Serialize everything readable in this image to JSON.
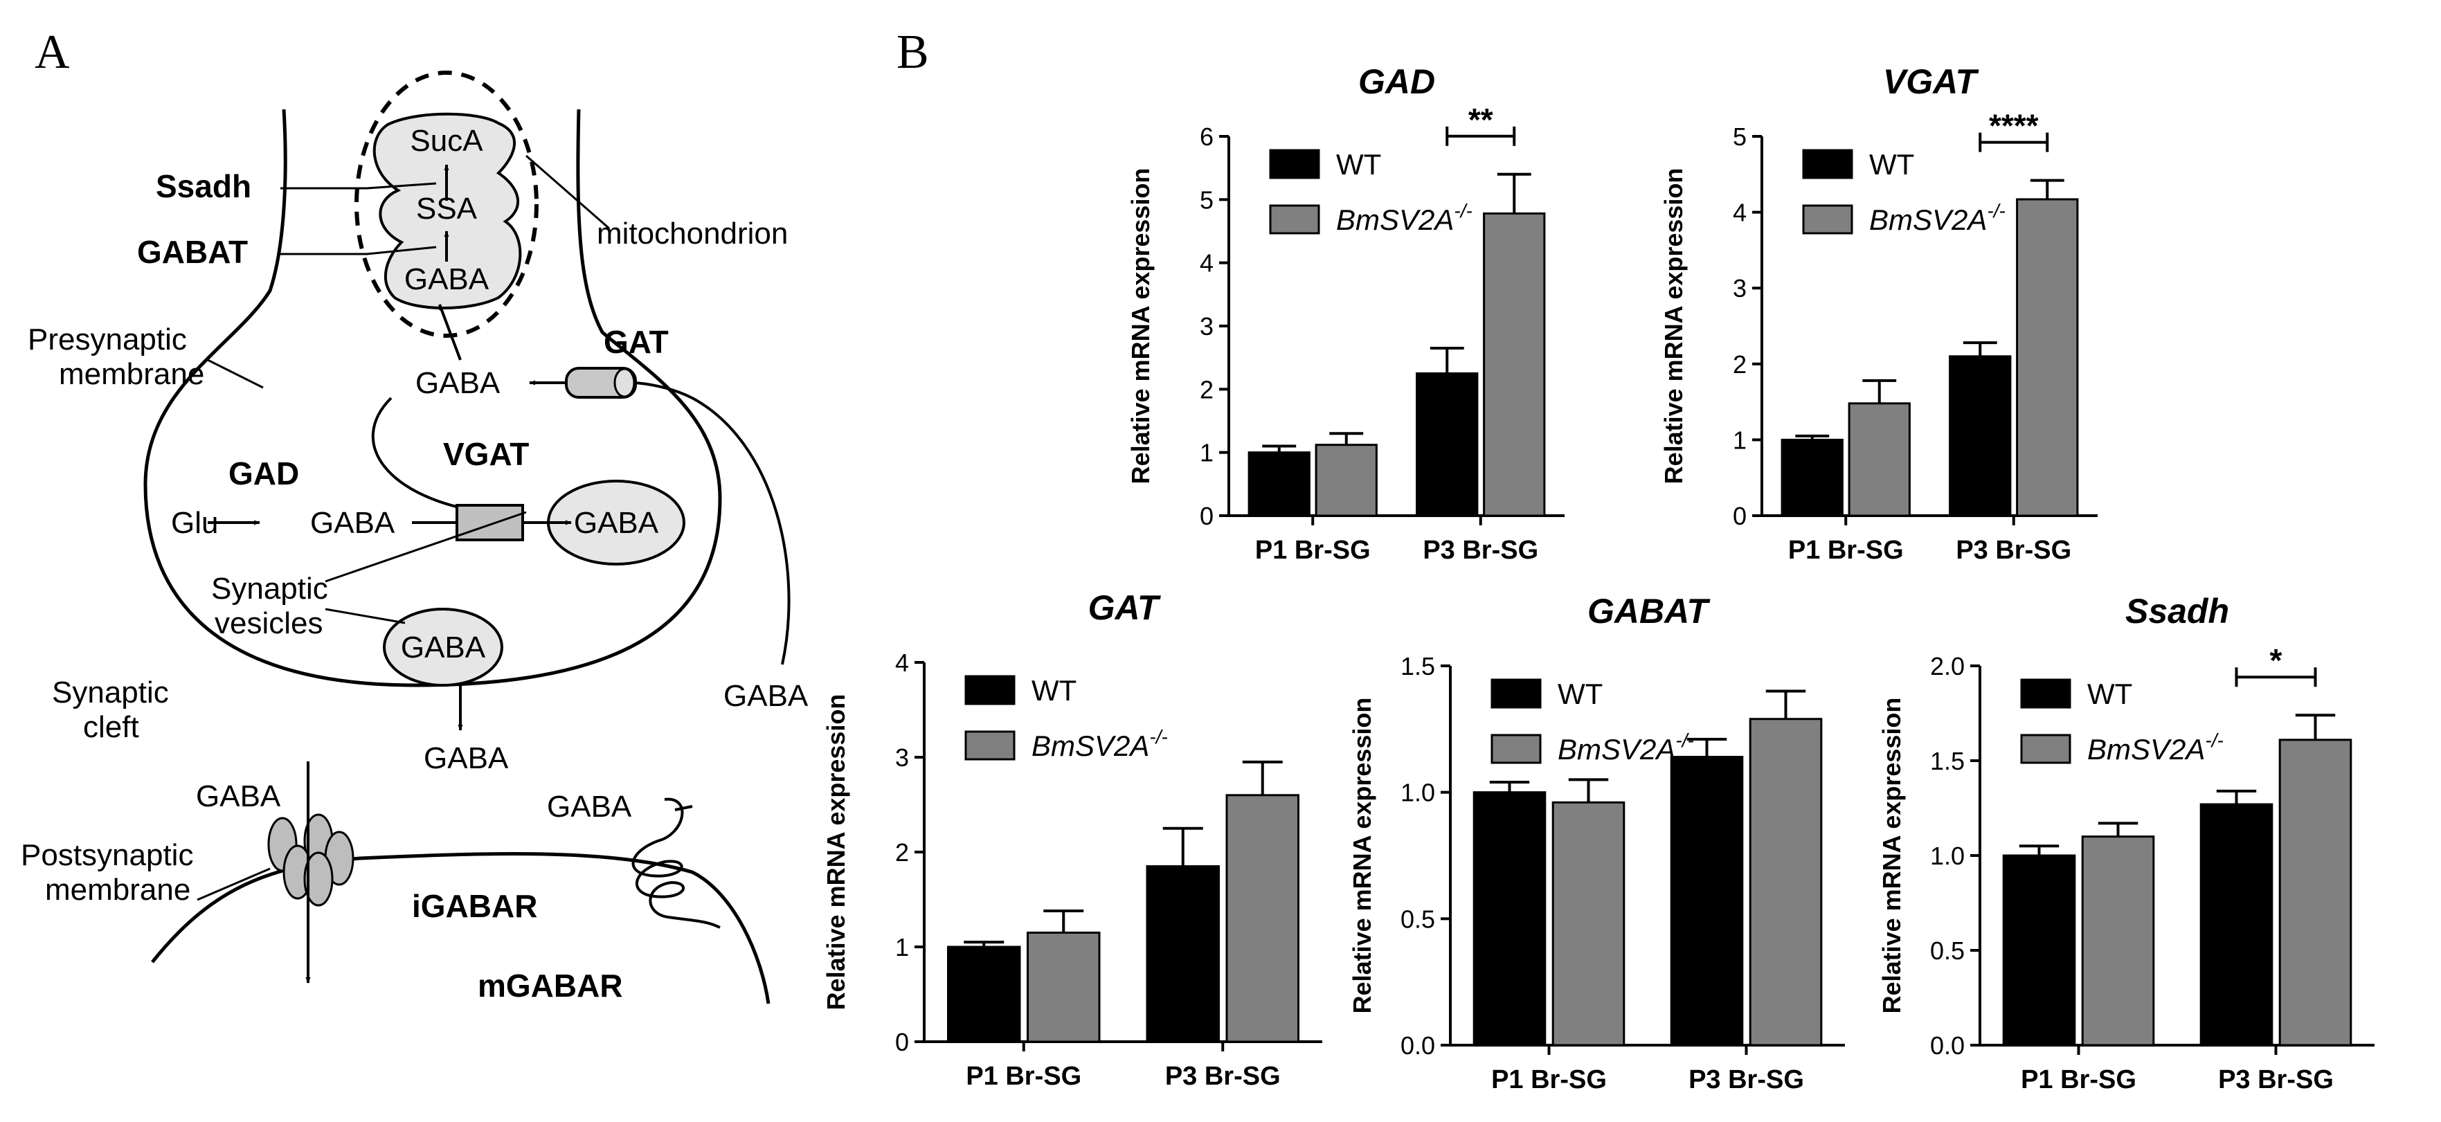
{
  "panels": {
    "a_label": "A",
    "b_label": "B"
  },
  "diagram": {
    "mito_layers": [
      "SucA",
      "SSA",
      "GABA"
    ],
    "enzymes": {
      "ssadh": "Ssadh",
      "gabat": "GABAT",
      "gad": "GAD",
      "vgat": "VGAT",
      "gat": "GAT"
    },
    "labels": {
      "mitochondrion": "mitochondrion",
      "presynaptic_1": "Presynaptic",
      "presynaptic_2": "membrane",
      "gaba_cyto": "GABA",
      "glu": "Glu",
      "gaba_syn": "GABA",
      "gaba_vesicle": "GABA",
      "synaptic_1": "Synaptic",
      "synaptic_2": "vesicles",
      "gaba_vesicle2": "GABA",
      "cleft_1": "Synaptic",
      "cleft_2": "cleft",
      "gaba_released": "GABA",
      "gaba_right": "GABA",
      "gaba_igabar": "GABA",
      "postsynaptic_1": "Postsynaptic",
      "postsynaptic_2": "membrane",
      "gaba_mgabar": "GABA",
      "igabar": "iGABAR",
      "mgabar": "mGABAR"
    }
  },
  "colors": {
    "wt": "#000000",
    "ko": "#808080",
    "axis": "#000000"
  },
  "legend": {
    "wt": "WT",
    "ko_base": "BmSV2A",
    "ko_sup": "-/-"
  },
  "chart_data": [
    {
      "type": "bar",
      "title": "GAD",
      "ylabel": "Relative mRNA expression",
      "categories": [
        "P1 Br-SG",
        "P3 Br-SG"
      ],
      "ylim": [
        0,
        6
      ],
      "yticks": [
        0,
        1,
        2,
        3,
        4,
        5,
        6
      ],
      "series": [
        {
          "name": "WT",
          "values": [
            1.0,
            2.25
          ],
          "errors": [
            0.1,
            0.4
          ]
        },
        {
          "name": "BmSV2A-/-",
          "values": [
            1.12,
            4.78
          ],
          "errors": [
            0.18,
            0.62
          ]
        }
      ],
      "significance": [
        {
          "category": "P3 Br-SG",
          "label": "**"
        }
      ]
    },
    {
      "type": "bar",
      "title": "VGAT",
      "ylabel": "Relative mRNA expression",
      "categories": [
        "P1 Br-SG",
        "P3 Br-SG"
      ],
      "ylim": [
        0,
        5
      ],
      "yticks": [
        0,
        1,
        2,
        3,
        4,
        5
      ],
      "series": [
        {
          "name": "WT",
          "values": [
            1.0,
            2.1
          ],
          "errors": [
            0.05,
            0.18
          ]
        },
        {
          "name": "BmSV2A-/-",
          "values": [
            1.48,
            4.17
          ],
          "errors": [
            0.3,
            0.25
          ]
        }
      ],
      "significance": [
        {
          "category": "P3 Br-SG",
          "label": "****"
        }
      ]
    },
    {
      "type": "bar",
      "title": "GAT",
      "ylabel": "Relative mRNA expression",
      "categories": [
        "P1 Br-SG",
        "P3 Br-SG"
      ],
      "ylim": [
        0,
        4
      ],
      "yticks": [
        0,
        1,
        2,
        3,
        4
      ],
      "series": [
        {
          "name": "WT",
          "values": [
            1.0,
            1.85
          ],
          "errors": [
            0.05,
            0.4
          ]
        },
        {
          "name": "BmSV2A-/-",
          "values": [
            1.15,
            2.6
          ],
          "errors": [
            0.23,
            0.35
          ]
        }
      ],
      "significance": []
    },
    {
      "type": "bar",
      "title": "GABAT",
      "ylabel": "Relative mRNA expression",
      "categories": [
        "P1 Br-SG",
        "P3 Br-SG"
      ],
      "ylim": [
        0,
        1.5
      ],
      "yticks": [
        0.0,
        0.5,
        1.0,
        1.5
      ],
      "series": [
        {
          "name": "WT",
          "values": [
            1.0,
            1.14
          ],
          "errors": [
            0.04,
            0.07
          ]
        },
        {
          "name": "BmSV2A-/-",
          "values": [
            0.96,
            1.29
          ],
          "errors": [
            0.09,
            0.11
          ]
        }
      ],
      "significance": []
    },
    {
      "type": "bar",
      "title": "Ssadh",
      "ylabel": "Relative mRNA expression",
      "categories": [
        "P1 Br-SG",
        "P3 Br-SG"
      ],
      "ylim": [
        0,
        2.0
      ],
      "yticks": [
        0.0,
        0.5,
        1.0,
        1.5,
        2.0
      ],
      "series": [
        {
          "name": "WT",
          "values": [
            1.0,
            1.27
          ],
          "errors": [
            0.05,
            0.07
          ]
        },
        {
          "name": "BmSV2A-/-",
          "values": [
            1.1,
            1.61
          ],
          "errors": [
            0.07,
            0.13
          ]
        }
      ],
      "significance": [
        {
          "category": "P3 Br-SG",
          "label": "*"
        }
      ]
    }
  ]
}
